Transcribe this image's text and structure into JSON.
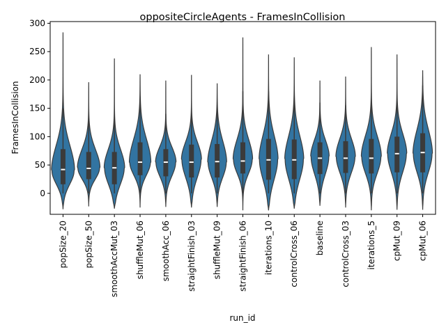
{
  "chart_data": {
    "type": "violin",
    "title": "oppositeCircleAgents - FramesInCollision",
    "xlabel": "run_id",
    "ylabel": "FramesInCollision",
    "ylim": [
      -37,
      303
    ],
    "yticks": [
      0,
      50,
      100,
      150,
      200,
      250,
      300
    ],
    "grid": false,
    "fill_color": "#3274a1",
    "edge_color": "#3b3b3b",
    "categories": [
      "popSize_20",
      "popSize_50",
      "smoothAccMut_03",
      "shuffleMut_06",
      "smoothAcc_06",
      "straightFinish_03",
      "shuffleMut_09",
      "straightFinish_06",
      "iterations_10",
      "controlCross_06",
      "baseline",
      "controlCross_03",
      "iterations_5",
      "cpMut_09",
      "cpMut_06"
    ],
    "series": [
      {
        "category": "popSize_20",
        "min": -28,
        "max": 284,
        "q1": 16,
        "median": 42,
        "q3": 78,
        "whisker_low": 0,
        "whisker_high": 150,
        "mode": 40,
        "half_width": 0.45
      },
      {
        "category": "popSize_50",
        "min": -23,
        "max": 196,
        "q1": 25,
        "median": 44,
        "q3": 73,
        "whisker_low": 0,
        "whisker_high": 128,
        "mode": 45,
        "half_width": 0.44
      },
      {
        "category": "smoothAccMut_03",
        "min": -27,
        "max": 238,
        "q1": 16,
        "median": 45,
        "q3": 73,
        "whisker_low": 0,
        "whisker_high": 130,
        "mode": 45,
        "half_width": 0.4
      },
      {
        "category": "shuffleMut_06",
        "min": -25,
        "max": 210,
        "q1": 32,
        "median": 55,
        "q3": 90,
        "whisker_low": 0,
        "whisker_high": 165,
        "mode": 55,
        "half_width": 0.42
      },
      {
        "category": "smoothAcc_06",
        "min": -24,
        "max": 199,
        "q1": 30,
        "median": 55,
        "q3": 78,
        "whisker_low": 0,
        "whisker_high": 140,
        "mode": 55,
        "half_width": 0.4
      },
      {
        "category": "straightFinish_03",
        "min": -25,
        "max": 209,
        "q1": 28,
        "median": 55,
        "q3": 86,
        "whisker_low": 0,
        "whisker_high": 150,
        "mode": 60,
        "half_width": 0.39
      },
      {
        "category": "shuffleMut_09",
        "min": -24,
        "max": 194,
        "q1": 28,
        "median": 56,
        "q3": 87,
        "whisker_low": 0,
        "whisker_high": 150,
        "mode": 55,
        "half_width": 0.37
      },
      {
        "category": "straightFinish_06",
        "min": -30,
        "max": 275,
        "q1": 35,
        "median": 57,
        "q3": 90,
        "whisker_low": 0,
        "whisker_high": 180,
        "mode": 60,
        "half_width": 0.38
      },
      {
        "category": "iterations_10",
        "min": -30,
        "max": 245,
        "q1": 24,
        "median": 59,
        "q3": 96,
        "whisker_low": 0,
        "whisker_high": 180,
        "mode": 60,
        "half_width": 0.37
      },
      {
        "category": "controlCross_06",
        "min": -27,
        "max": 240,
        "q1": 25,
        "median": 59,
        "q3": 95,
        "whisker_low": 0,
        "whisker_high": 170,
        "mode": 60,
        "half_width": 0.37
      },
      {
        "category": "baseline",
        "min": -22,
        "max": 199,
        "q1": 34,
        "median": 62,
        "q3": 90,
        "whisker_low": 0,
        "whisker_high": 160,
        "mode": 65,
        "half_width": 0.36
      },
      {
        "category": "controlCross_03",
        "min": -25,
        "max": 206,
        "q1": 36,
        "median": 62,
        "q3": 92,
        "whisker_low": 0,
        "whisker_high": 155,
        "mode": 65,
        "half_width": 0.38
      },
      {
        "category": "iterations_5",
        "min": -30,
        "max": 258,
        "q1": 35,
        "median": 62,
        "q3": 96,
        "whisker_low": 0,
        "whisker_high": 165,
        "mode": 65,
        "half_width": 0.39
      },
      {
        "category": "cpMut_09",
        "min": -29,
        "max": 245,
        "q1": 37,
        "median": 70,
        "q3": 100,
        "whisker_low": 0,
        "whisker_high": 160,
        "mode": 70,
        "half_width": 0.38
      },
      {
        "category": "cpMut_06",
        "min": -29,
        "max": 217,
        "q1": 37,
        "median": 72,
        "q3": 106,
        "whisker_low": 0,
        "whisker_high": 190,
        "mode": 70,
        "half_width": 0.38
      }
    ]
  }
}
